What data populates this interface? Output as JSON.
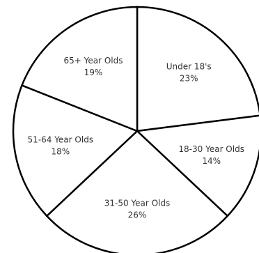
{
  "chart_data": {
    "type": "pie",
    "title": "",
    "slices": [
      {
        "label": "Under 18's",
        "percent_label": "23%",
        "value": 23
      },
      {
        "label": "18-30 Year Olds",
        "percent_label": "14%",
        "value": 14
      },
      {
        "label": "31-50 Year Olds",
        "percent_label": "26%",
        "value": 26
      },
      {
        "label": "51-64 Year Olds",
        "percent_label": "18%",
        "value": 18
      },
      {
        "label": "65+ Year Olds",
        "percent_label": "19%",
        "value": 19
      }
    ],
    "start_angle_deg": 0,
    "direction": "clockwise",
    "legend": "none",
    "colors": {
      "fill": "#ffffff",
      "stroke": "#000000",
      "text": "#333333"
    }
  }
}
